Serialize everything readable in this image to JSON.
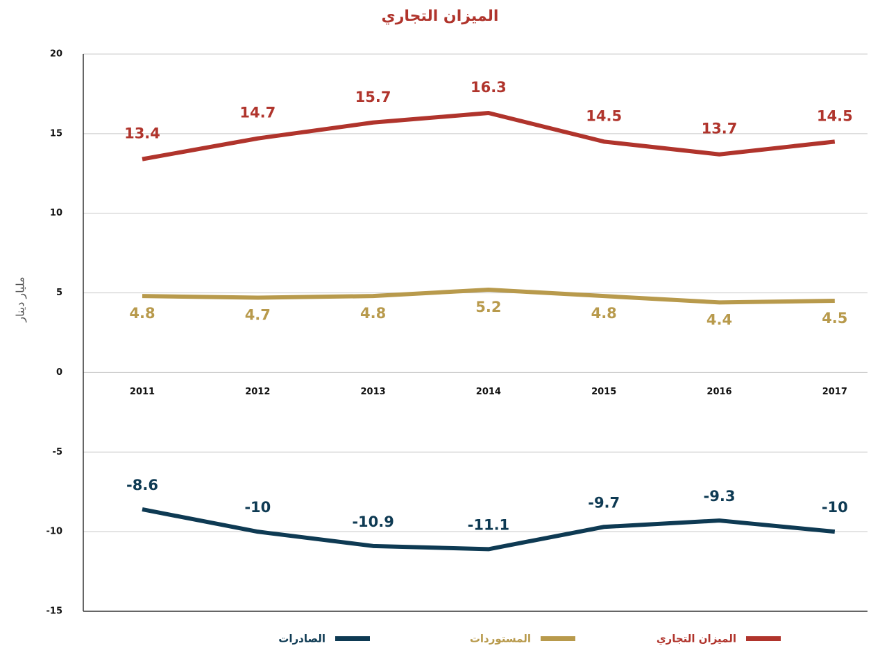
{
  "chart_data": {
    "type": "line",
    "title": "الميزان التجاري",
    "y_label": "مليار دينار",
    "categories": [
      "2011",
      "2012",
      "2013",
      "2014",
      "2015",
      "2016",
      "2017"
    ],
    "series": [
      {
        "name": "الميزان التجاري",
        "color": "#b0342c",
        "values": [
          13.4,
          14.7,
          15.7,
          16.3,
          14.5,
          13.7,
          14.5
        ]
      },
      {
        "name": "المستوردات",
        "color": "#b89a4c",
        "values": [
          4.8,
          4.7,
          4.8,
          5.2,
          4.8,
          4.4,
          4.5
        ]
      },
      {
        "name": "الصادرات",
        "color": "#0e3a53",
        "values": [
          -8.6,
          -10,
          -10.9,
          -11.1,
          -9.7,
          -9.3,
          -10
        ]
      }
    ],
    "ylim": [
      -15,
      20
    ],
    "yticks": [
      -15,
      -10,
      -5,
      0,
      5,
      10,
      15,
      20
    ],
    "grid": true
  }
}
